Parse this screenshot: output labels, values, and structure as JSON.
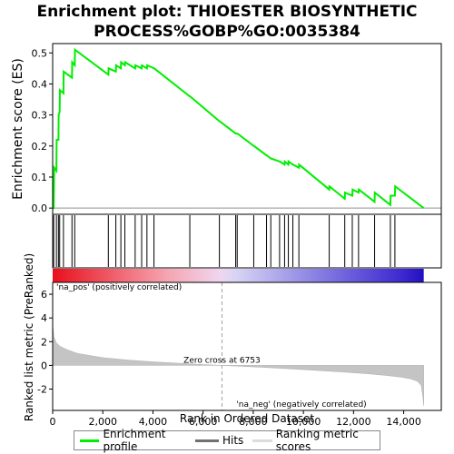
{
  "title_line1": "Enrichment plot: THIOESTER BIOSYNTHETIC",
  "title_line2": "PROCESS%GOBP%GO:0035384",
  "chart_data": {
    "type": "line",
    "title": "Enrichment plot: THIOESTER BIOSYNTHETIC PROCESS%GOBP%GO:0035384",
    "es_panel": {
      "ylabel": "Enrichment score (ES)",
      "ylim": [
        -0.02,
        0.53
      ],
      "yticks": [
        0.0,
        0.1,
        0.2,
        0.3,
        0.4,
        0.5
      ],
      "ytick_labels": [
        "0.0",
        "0.1",
        "0.2",
        "0.3",
        "0.4",
        "0.5"
      ],
      "series": [
        {
          "name": "Enrichment profile",
          "color": "#00ee00",
          "x": [
            0,
            40,
            60,
            150,
            160,
            230,
            240,
            280,
            290,
            430,
            440,
            770,
            780,
            880,
            890,
            2220,
            2230,
            2520,
            2530,
            2720,
            2730,
            2880,
            2890,
            3290,
            3300,
            3550,
            3560,
            3760,
            3770,
            4040,
            4050,
            5470,
            5480,
            6650,
            6660,
            7300,
            7310,
            7360,
            7370,
            8020,
            8030,
            8530,
            8540,
            8700,
            8710,
            9050,
            9060,
            9250,
            9260,
            9400,
            9410,
            9580,
            9590,
            9820,
            9830,
            11030,
            11040,
            11650,
            11660,
            11950,
            11960,
            12200,
            12210,
            12840,
            12850,
            13470,
            13480,
            13650,
            13660,
            14800
          ],
          "y": [
            0.0,
            0.0,
            0.13,
            0.12,
            0.22,
            0.22,
            0.3,
            0.31,
            0.38,
            0.37,
            0.44,
            0.42,
            0.47,
            0.46,
            0.51,
            0.43,
            0.45,
            0.44,
            0.46,
            0.45,
            0.47,
            0.46,
            0.47,
            0.45,
            0.46,
            0.45,
            0.46,
            0.45,
            0.46,
            0.45,
            0.45,
            0.36,
            0.36,
            0.28,
            0.28,
            0.24,
            0.24,
            0.24,
            0.24,
            0.2,
            0.2,
            0.17,
            0.17,
            0.16,
            0.16,
            0.15,
            0.15,
            0.14,
            0.15,
            0.14,
            0.15,
            0.14,
            0.14,
            0.13,
            0.14,
            0.06,
            0.07,
            0.03,
            0.05,
            0.04,
            0.06,
            0.05,
            0.06,
            0.02,
            0.05,
            0.01,
            0.04,
            0.04,
            0.07,
            0.0
          ]
        }
      ]
    },
    "hits": {
      "name": "Hits",
      "positions": [
        40,
        150,
        230,
        280,
        430,
        770,
        880,
        2220,
        2520,
        2720,
        2880,
        3290,
        3550,
        3760,
        4040,
        5470,
        6650,
        7300,
        7360,
        8020,
        8530,
        8700,
        9050,
        9250,
        9400,
        9580,
        9820,
        11030,
        11650,
        11950,
        12200,
        12840,
        13470,
        13650
      ]
    },
    "rank_panel": {
      "ylabel": "Ranked list metric (PreRanked)",
      "xlabel": "Rank in Ordered Dataset",
      "series_name": "Ranking metric scores",
      "ylim": [
        -3.8,
        7.0
      ],
      "yticks": [
        -2,
        0,
        2,
        4,
        6
      ],
      "ytick_labels": [
        "-2",
        "0",
        "2",
        "4",
        "6"
      ],
      "x": [
        0,
        50,
        150,
        300,
        600,
        1000,
        2000,
        3000,
        4000,
        5000,
        6000,
        6753,
        7500,
        8500,
        9500,
        10500,
        11500,
        12500,
        13300,
        13900,
        14300,
        14550,
        14700,
        14760,
        14800
      ],
      "y": [
        3.5,
        2.4,
        1.9,
        1.6,
        1.3,
        1.0,
        0.65,
        0.45,
        0.3,
        0.18,
        0.07,
        0.0,
        -0.08,
        -0.18,
        -0.3,
        -0.42,
        -0.55,
        -0.7,
        -0.85,
        -1.0,
        -1.15,
        -1.35,
        -1.7,
        -2.6,
        -3.4
      ],
      "zero_cross_rank": 6753,
      "zero_cross_label": "Zero cross at 6753",
      "pos_label": "'na_pos' (positively correlated)",
      "neg_label": "'na_neg' (negatively correlated)"
    },
    "x_axis": {
      "xlim": [
        0,
        15500
      ],
      "xticks": [
        0,
        2000,
        4000,
        6000,
        8000,
        10000,
        12000,
        14000
      ],
      "xtick_labels": [
        "0",
        "2,000",
        "4,000",
        "6,000",
        "8,000",
        "10,000",
        "12,000",
        "14,000"
      ],
      "max_rank": 14800
    },
    "heatmap_bar": {
      "stops": [
        {
          "x": 0,
          "color": "#e8101c"
        },
        {
          "x": 4600,
          "color": "#f5a6b2"
        },
        {
          "x": 6700,
          "color": "#f0d6f0"
        },
        {
          "x": 7300,
          "color": "#d8d4f4"
        },
        {
          "x": 10300,
          "color": "#8e86e4"
        },
        {
          "x": 13900,
          "color": "#3d2ad0"
        },
        {
          "x": 14800,
          "color": "#2410c0"
        }
      ]
    }
  },
  "legend": {
    "items": [
      {
        "label": "Enrichment profile",
        "color": "#00ee00"
      },
      {
        "label": "Hits",
        "color": "#000000"
      },
      {
        "label": "Ranking metric scores",
        "color": "#c0c0c0"
      }
    ]
  }
}
